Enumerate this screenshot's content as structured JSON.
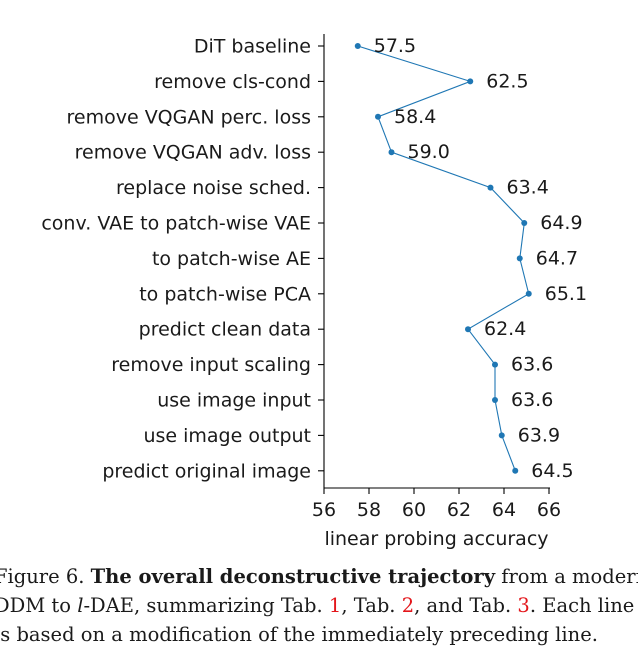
{
  "chart_data": {
    "type": "line",
    "orientation": "horizontal",
    "categories": [
      "DiT baseline",
      "remove cls-cond",
      "remove VQGAN perc. loss",
      "remove VQGAN adv. loss",
      "replace noise sched.",
      "conv. VAE to patch-wise VAE",
      "to patch-wise AE",
      "to patch-wise PCA",
      "predict clean data",
      "remove input scaling",
      "use image input",
      "use image output",
      "predict original image"
    ],
    "values": [
      57.5,
      62.5,
      58.4,
      59.0,
      63.4,
      64.9,
      64.7,
      65.1,
      62.4,
      63.6,
      63.6,
      63.9,
      64.5
    ],
    "value_labels": [
      "57.5",
      "62.5",
      "58.4",
      "59.0",
      "63.4",
      "64.9",
      "64.7",
      "65.1",
      "62.4",
      "63.6",
      "63.6",
      "63.9",
      "64.5"
    ],
    "xlabel": "linear probing accuracy",
    "xlim": [
      56,
      66
    ],
    "xticks": [
      "56",
      "58",
      "60",
      "62",
      "64",
      "66"
    ],
    "grid": false,
    "color": "#1f77b4"
  },
  "caption": {
    "line1_prefix": "Figure 6. ",
    "line1_bold": "The overall deconstructive trajectory",
    "line1_rest": " from a modern",
    "line2_a": "DDM to ",
    "line2_italic": "l",
    "line2_b": "-DAE, summarizing Tab. ",
    "ref1": "1",
    "sep1": ", Tab. ",
    "ref2": "2",
    "sep2": ", and Tab. ",
    "ref3": "3",
    "line2_end": ". Each line",
    "line3": "is based on a modification of the immediately preceding line."
  }
}
